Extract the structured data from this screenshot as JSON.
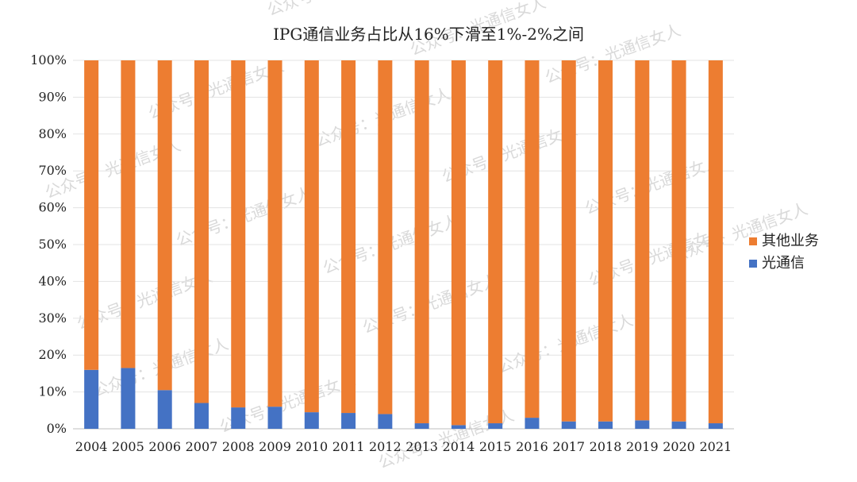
{
  "chart_data": {
    "type": "bar",
    "stacked": true,
    "percent_stacked": true,
    "title": "IPG通信业务占比从16%下滑至1%-2%之间",
    "xlabel": "",
    "ylabel": "",
    "ylim": [
      0,
      100
    ],
    "y_ticks": [
      "0%",
      "10%",
      "20%",
      "30%",
      "40%",
      "50%",
      "60%",
      "70%",
      "80%",
      "90%",
      "100%"
    ],
    "grid": true,
    "legend_position": "right",
    "categories": [
      "2004",
      "2005",
      "2006",
      "2007",
      "2008",
      "2009",
      "2010",
      "2011",
      "2012",
      "2013",
      "2014",
      "2015",
      "2016",
      "2017",
      "2018",
      "2019",
      "2020",
      "2021"
    ],
    "series": [
      {
        "name": "光通信",
        "color": "#4472C4",
        "values": [
          16,
          16.5,
          10.5,
          7,
          5.8,
          6,
          4.5,
          4.3,
          4,
          1.5,
          1,
          1.5,
          3,
          2,
          2,
          2.3,
          2,
          1.5
        ]
      },
      {
        "name": "其他业务",
        "color": "#ED7D31",
        "values": [
          84,
          83.5,
          89.5,
          93,
          94.2,
          94,
          95.5,
          95.7,
          96,
          98.5,
          99,
          98.5,
          97,
          98,
          98,
          97.7,
          98,
          98.5
        ]
      }
    ],
    "watermark": "公众号：光通信女人"
  }
}
